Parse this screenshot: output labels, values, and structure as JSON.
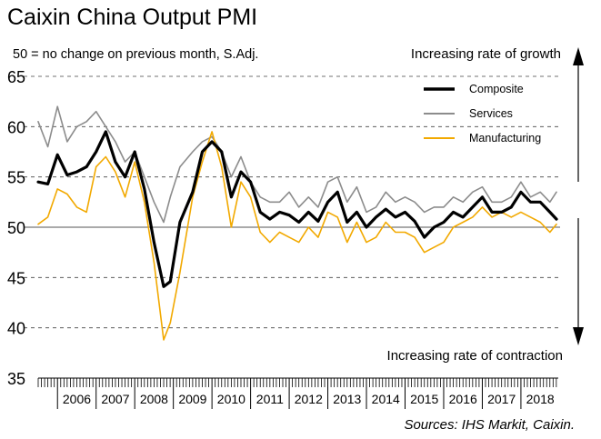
{
  "chart_data": {
    "type": "line",
    "title": "Caixin China Output PMI",
    "subtitle": "50 = no change on previous month, S.Adj.",
    "annotation_top": "Increasing rate of growth",
    "annotation_bottom": "Increasing rate of contraction",
    "source": "Sources: IHS Markit, Caixin.",
    "ylim": [
      35,
      65
    ],
    "yticks": [
      35,
      40,
      45,
      50,
      55,
      60,
      65
    ],
    "xlim": [
      2005.5,
      2018.92
    ],
    "year_labels": [
      "2006",
      "2007",
      "2008",
      "2009",
      "2010",
      "2011",
      "2012",
      "2013",
      "2014",
      "2015",
      "2016",
      "2017",
      "2018"
    ],
    "reference_line": 50,
    "grid": "dashed horizontal",
    "legend_position": "top-right",
    "series": [
      {
        "name": "Composite",
        "color": "#000000",
        "x": [
          2005.5,
          2005.75,
          2006.0,
          2006.25,
          2006.5,
          2006.75,
          2007.0,
          2007.25,
          2007.5,
          2007.75,
          2008.0,
          2008.25,
          2008.5,
          2008.75,
          2008.92,
          2009.17,
          2009.5,
          2009.75,
          2010.0,
          2010.25,
          2010.5,
          2010.75,
          2011.0,
          2011.25,
          2011.5,
          2011.75,
          2012.0,
          2012.25,
          2012.5,
          2012.75,
          2013.0,
          2013.25,
          2013.5,
          2013.75,
          2014.0,
          2014.25,
          2014.5,
          2014.75,
          2015.0,
          2015.25,
          2015.5,
          2015.75,
          2016.0,
          2016.25,
          2016.5,
          2016.75,
          2017.0,
          2017.25,
          2017.5,
          2017.75,
          2018.0,
          2018.25,
          2018.5,
          2018.75,
          2018.92
        ],
        "values": [
          54.5,
          54.3,
          57.2,
          55.2,
          55.5,
          56.0,
          57.5,
          59.5,
          56.5,
          55.0,
          57.5,
          53.8,
          48.5,
          44.1,
          44.6,
          50.5,
          53.5,
          57.5,
          58.5,
          57.5,
          53.0,
          55.5,
          54.5,
          51.5,
          50.8,
          51.5,
          51.2,
          50.5,
          51.5,
          50.6,
          52.5,
          53.5,
          50.5,
          51.5,
          50.0,
          51.0,
          51.8,
          51.0,
          51.5,
          50.6,
          49.0,
          50.0,
          50.5,
          51.5,
          51.0,
          52.0,
          53.0,
          51.5,
          51.5,
          52.0,
          53.5,
          52.5,
          52.5,
          51.5,
          50.8
        ]
      },
      {
        "name": "Services",
        "color": "#8c8c8c",
        "x": [
          2005.5,
          2005.75,
          2006.0,
          2006.25,
          2006.5,
          2006.75,
          2007.0,
          2007.25,
          2007.5,
          2007.75,
          2008.0,
          2008.25,
          2008.5,
          2008.75,
          2008.92,
          2009.17,
          2009.5,
          2009.75,
          2010.0,
          2010.25,
          2010.5,
          2010.75,
          2011.0,
          2011.25,
          2011.5,
          2011.75,
          2012.0,
          2012.25,
          2012.5,
          2012.75,
          2013.0,
          2013.25,
          2013.5,
          2013.75,
          2014.0,
          2014.25,
          2014.5,
          2014.75,
          2015.0,
          2015.25,
          2015.5,
          2015.75,
          2016.0,
          2016.25,
          2016.5,
          2016.75,
          2017.0,
          2017.25,
          2017.5,
          2017.75,
          2018.0,
          2018.25,
          2018.5,
          2018.75,
          2018.92
        ],
        "values": [
          60.5,
          58.0,
          62.0,
          58.5,
          60.0,
          60.5,
          61.5,
          60.0,
          58.5,
          56.5,
          57.5,
          55.0,
          52.5,
          50.5,
          53.0,
          56.0,
          57.5,
          58.5,
          59.0,
          57.5,
          55.0,
          57.0,
          54.5,
          53.0,
          52.5,
          52.5,
          53.5,
          52.0,
          53.0,
          52.0,
          54.5,
          55.0,
          52.5,
          54.0,
          51.5,
          52.0,
          53.5,
          52.5,
          53.0,
          52.5,
          51.5,
          52.0,
          52.0,
          53.0,
          52.5,
          53.5,
          54.0,
          52.5,
          52.5,
          53.0,
          54.5,
          53.0,
          53.5,
          52.5,
          53.5
        ]
      },
      {
        "name": "Manufacturing",
        "color": "#f2a900",
        "x": [
          2005.5,
          2005.75,
          2006.0,
          2006.25,
          2006.5,
          2006.75,
          2007.0,
          2007.25,
          2007.5,
          2007.75,
          2008.0,
          2008.25,
          2008.5,
          2008.75,
          2008.92,
          2009.17,
          2009.5,
          2009.75,
          2010.0,
          2010.25,
          2010.5,
          2010.75,
          2011.0,
          2011.25,
          2011.5,
          2011.75,
          2012.0,
          2012.25,
          2012.5,
          2012.75,
          2013.0,
          2013.25,
          2013.5,
          2013.75,
          2014.0,
          2014.25,
          2014.5,
          2014.75,
          2015.0,
          2015.25,
          2015.5,
          2015.75,
          2016.0,
          2016.25,
          2016.5,
          2016.75,
          2017.0,
          2017.25,
          2017.5,
          2017.75,
          2018.0,
          2018.25,
          2018.5,
          2018.75,
          2018.92
        ],
        "values": [
          50.3,
          51.0,
          53.8,
          53.3,
          52.0,
          51.5,
          56.0,
          57.0,
          55.5,
          53.0,
          56.5,
          52.5,
          46.5,
          38.8,
          40.5,
          45.5,
          53.0,
          56.5,
          59.5,
          56.0,
          50.0,
          54.5,
          53.0,
          49.5,
          48.5,
          49.5,
          49.0,
          48.5,
          50.0,
          49.0,
          51.5,
          51.0,
          48.5,
          50.5,
          48.5,
          49.0,
          50.5,
          49.5,
          49.5,
          49.0,
          47.5,
          48.0,
          48.5,
          50.0,
          50.5,
          51.0,
          52.0,
          51.0,
          51.5,
          51.0,
          51.5,
          51.0,
          50.5,
          49.5,
          50.3
        ]
      }
    ]
  }
}
